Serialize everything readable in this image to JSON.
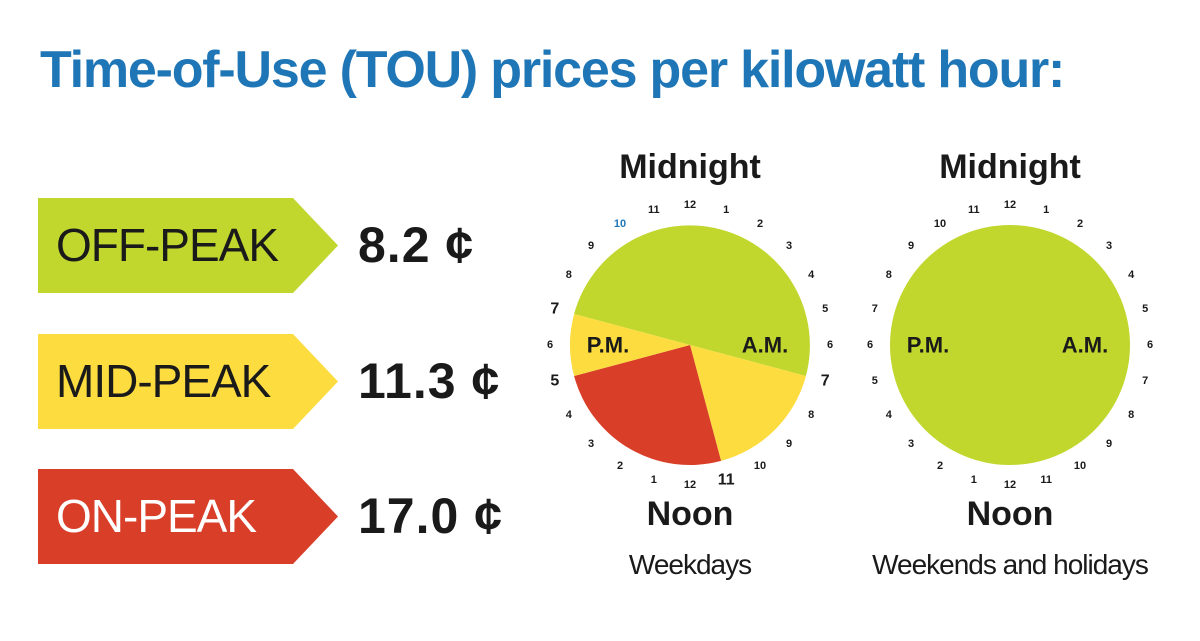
{
  "title": "Time-of-Use (TOU) prices per kilowatt hour:",
  "rates": [
    {
      "label": "OFF-PEAK",
      "price": "8.2 ¢",
      "color": "#c1d72e",
      "text_color": "#1a1a1a"
    },
    {
      "label": "MID-PEAK",
      "price": "11.3 ¢",
      "color": "#fddc3f",
      "text_color": "#1a1a1a"
    },
    {
      "label": "ON-PEAK",
      "price": "17.0 ¢",
      "color": "#d93e28",
      "text_color": "#ffffff"
    }
  ],
  "chart_data": [
    {
      "type": "pie",
      "top_label": "Midnight",
      "bottom_label": "Noon",
      "caption": "Weekdays",
      "am_label": "A.M.",
      "pm_label": "P.M.",
      "hour_labels": [
        "12",
        "1",
        "2",
        "3",
        "4",
        "5",
        "6",
        "7",
        "8",
        "9",
        "10",
        "11",
        "12",
        "1",
        "2",
        "3",
        "4",
        "5",
        "6",
        "7",
        "8",
        "9",
        "10",
        "11"
      ],
      "segments": [
        {
          "name": "OFF-PEAK",
          "from_hour": 19,
          "to_hour": 7,
          "color": "#c1d72e"
        },
        {
          "name": "MID-PEAK",
          "from_hour": 7,
          "to_hour": 11,
          "color": "#fddc3f"
        },
        {
          "name": "ON-PEAK",
          "from_hour": 11,
          "to_hour": 17,
          "color": "#d93e28"
        },
        {
          "name": "MID-PEAK",
          "from_hour": 17,
          "to_hour": 19,
          "color": "#fddc3f"
        }
      ],
      "bold_hours": [
        7,
        11,
        17,
        19
      ],
      "highlight_hours": [
        22
      ],
      "highlight_color": "#1f76b6"
    },
    {
      "type": "pie",
      "top_label": "Midnight",
      "bottom_label": "Noon",
      "caption": "Weekends and holidays",
      "am_label": "A.M.",
      "pm_label": "P.M.",
      "hour_labels": [
        "12",
        "1",
        "2",
        "3",
        "4",
        "5",
        "6",
        "7",
        "8",
        "9",
        "10",
        "11",
        "12",
        "1",
        "2",
        "3",
        "4",
        "5",
        "6",
        "7",
        "8",
        "9",
        "10",
        "11"
      ],
      "segments": [
        {
          "name": "OFF-PEAK",
          "from_hour": 0,
          "to_hour": 24,
          "color": "#c1d72e"
        }
      ],
      "bold_hours": [],
      "highlight_hours": [],
      "highlight_color": "#1f76b6"
    }
  ]
}
